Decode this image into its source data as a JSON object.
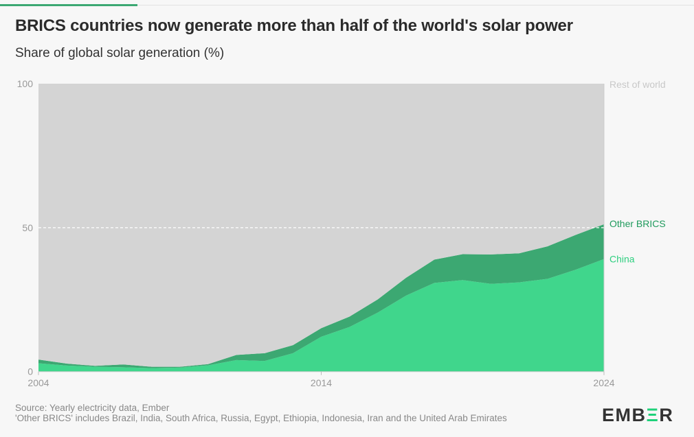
{
  "title": "BRICS countries now generate more than half of the world's solar power",
  "subtitle": "Share of global solar generation (%)",
  "source": "Source: Yearly electricity data, Ember",
  "note": "'Other BRICS' includes Brazil, India, South Africa, Russia, Egypt, Ethiopia, Indonesia, Iran and the United Arab Emirates",
  "logo": "EMBER",
  "colors": {
    "rest_of_world": "#d4d4d4",
    "china": "#40d68c",
    "other_brics": "#3ca872",
    "other_label": "#1f9a5c",
    "china_label": "#2fcf80",
    "rest_label": "#c8c8c8"
  },
  "chart_data": {
    "type": "area",
    "stacked": true,
    "x": [
      2004,
      2005,
      2006,
      2007,
      2008,
      2009,
      2010,
      2011,
      2012,
      2013,
      2014,
      2015,
      2016,
      2017,
      2018,
      2019,
      2020,
      2021,
      2022,
      2023,
      2024
    ],
    "xticks": [
      "2004",
      "2014",
      "2024"
    ],
    "yticks": [
      "0",
      "50",
      "100"
    ],
    "ylim": [
      0,
      100
    ],
    "reference_line": 50,
    "series": [
      {
        "name": "China",
        "values": [
          2.9,
          2.1,
          1.7,
          1.5,
          1.2,
          1.4,
          2.2,
          4.0,
          3.7,
          6.4,
          12.1,
          15.5,
          20.5,
          26.4,
          30.8,
          31.8,
          30.5,
          31.0,
          32.2,
          35.4,
          39.1
        ]
      },
      {
        "name": "Other BRICS",
        "values": [
          1.3,
          0.7,
          0.3,
          1.0,
          0.5,
          0.3,
          0.4,
          1.8,
          2.7,
          2.8,
          3.0,
          3.6,
          4.6,
          6.2,
          8.1,
          9.0,
          10.2,
          10.1,
          11.3,
          12.1,
          12.1
        ]
      },
      {
        "name": "Rest of world",
        "values": [
          95.8,
          97.2,
          98.0,
          97.5,
          98.3,
          98.3,
          97.4,
          94.2,
          93.6,
          90.8,
          84.9,
          80.9,
          74.9,
          67.4,
          61.1,
          59.2,
          59.3,
          58.9,
          56.5,
          52.5,
          48.8
        ]
      }
    ]
  }
}
